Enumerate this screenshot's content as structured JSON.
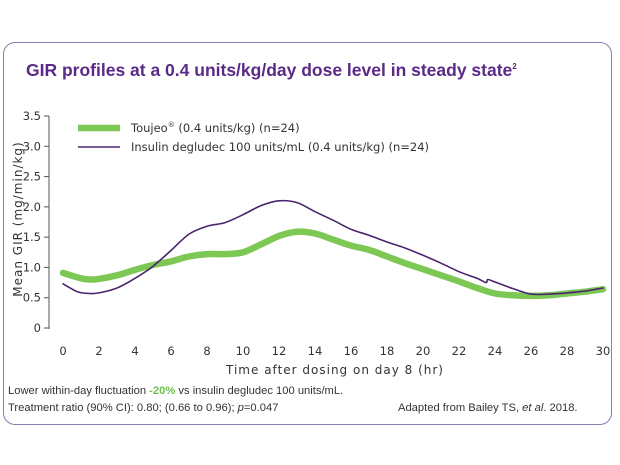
{
  "title": "GIR profiles at a 0.4 units/kg/day dose level in steady state",
  "title_superscript": "2",
  "chart_data": {
    "type": "line",
    "xlabel": "Time after dosing on day 8 (hr)",
    "ylabel": "Mean GIR (mg/min/kg)",
    "xlim": [
      0,
      30
    ],
    "ylim": [
      0,
      3.5
    ],
    "x_ticks": [
      0,
      2,
      4,
      6,
      8,
      10,
      12,
      14,
      16,
      18,
      20,
      22,
      24,
      26,
      28,
      30
    ],
    "y_ticks": [
      "0",
      "0.5",
      "1.0",
      "1.5",
      "2.0",
      "2.5",
      "3.0",
      "3.5"
    ],
    "grid": false,
    "legend_position": "top-left",
    "series": [
      {
        "name": "Toujeo",
        "name_mark": "®",
        "name_suffix": " (0.4 units/kg)  (n=24)",
        "color": "#7dc855",
        "line": "thick",
        "points": [
          [
            0,
            0.91
          ],
          [
            1,
            0.82
          ],
          [
            1.5,
            0.8
          ],
          [
            2,
            0.81
          ],
          [
            3,
            0.87
          ],
          [
            4,
            0.96
          ],
          [
            5,
            1.04
          ],
          [
            6,
            1.1
          ],
          [
            7,
            1.18
          ],
          [
            8,
            1.22
          ],
          [
            9,
            1.22
          ],
          [
            10,
            1.25
          ],
          [
            11,
            1.38
          ],
          [
            12,
            1.52
          ],
          [
            13,
            1.59
          ],
          [
            14,
            1.56
          ],
          [
            15,
            1.46
          ],
          [
            16,
            1.36
          ],
          [
            17,
            1.29
          ],
          [
            18,
            1.18
          ],
          [
            19,
            1.07
          ],
          [
            20,
            0.97
          ],
          [
            21,
            0.87
          ],
          [
            22,
            0.77
          ],
          [
            23,
            0.66
          ],
          [
            24,
            0.57
          ],
          [
            25,
            0.54
          ],
          [
            26,
            0.53
          ],
          [
            27,
            0.54
          ],
          [
            28,
            0.57
          ],
          [
            29,
            0.6
          ],
          [
            30,
            0.64
          ]
        ]
      },
      {
        "name": "Insulin degludec 100 units/mL (0.4 units/kg)  (n=24)",
        "color": "#4a2470",
        "line": "thin",
        "points": [
          [
            0,
            0.73
          ],
          [
            0.8,
            0.6
          ],
          [
            1.5,
            0.57
          ],
          [
            2,
            0.58
          ],
          [
            3,
            0.66
          ],
          [
            4,
            0.82
          ],
          [
            5,
            1.02
          ],
          [
            6,
            1.28
          ],
          [
            7,
            1.55
          ],
          [
            8,
            1.68
          ],
          [
            9,
            1.74
          ],
          [
            10,
            1.87
          ],
          [
            11,
            2.02
          ],
          [
            12,
            2.1
          ],
          [
            13,
            2.07
          ],
          [
            14,
            1.92
          ],
          [
            15,
            1.78
          ],
          [
            16,
            1.63
          ],
          [
            17,
            1.53
          ],
          [
            18,
            1.42
          ],
          [
            19,
            1.32
          ],
          [
            20,
            1.2
          ],
          [
            21,
            1.07
          ],
          [
            22,
            0.93
          ],
          [
            23,
            0.82
          ],
          [
            23.5,
            0.75
          ],
          [
            23.6,
            0.8
          ],
          [
            24,
            0.76
          ],
          [
            25,
            0.65
          ],
          [
            26,
            0.56
          ],
          [
            27,
            0.56
          ],
          [
            28,
            0.58
          ],
          [
            29,
            0.61
          ],
          [
            30,
            0.66
          ]
        ]
      }
    ]
  },
  "footnotes": {
    "line1_pre": "Lower within-day fluctuation ",
    "line1_highlight": "-20%",
    "line1_post": " vs insulin degludec 100 units/mL.",
    "line2_pre": "Treatment ratio (90% CI): 0.80; (0.66 to 0.96); ",
    "line2_p": "p",
    "line2_post": "=0.047",
    "line3_pre": "Adapted from Bailey TS, ",
    "line3_etal": "et al",
    "line3_post": ". 2018."
  }
}
